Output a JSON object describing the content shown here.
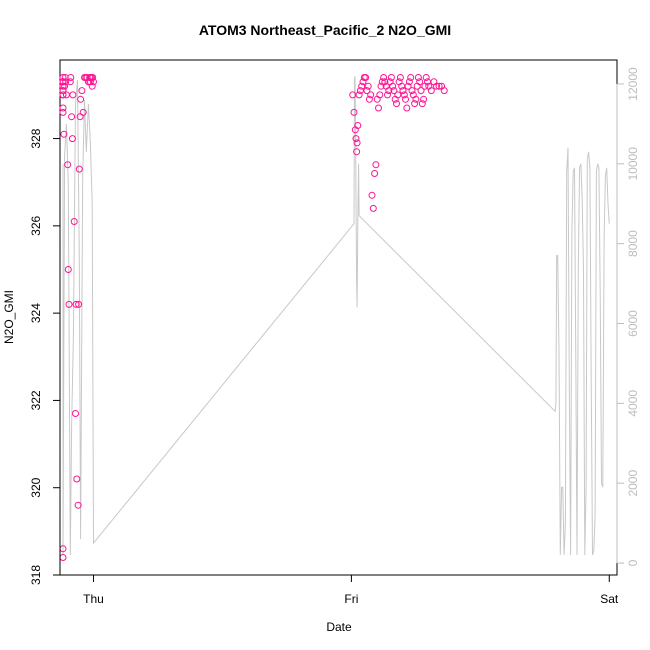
{
  "chart_data": {
    "type": "scatter",
    "title": "ATOM3 Northeast_Pacific_2 N2O_GMI",
    "xlabel": "Date",
    "ylabel": "N2O_GMI",
    "y2label": "",
    "xlim": [
      -0.13,
      2.03
    ],
    "ylim": [
      318,
      329.8
    ],
    "y2lim": [
      -300,
      12600
    ],
    "x_ticks": [
      {
        "value": 0,
        "label": "Thu"
      },
      {
        "value": 1,
        "label": "Fri"
      },
      {
        "value": 2,
        "label": "Sat"
      }
    ],
    "y_ticks": [
      318,
      320,
      322,
      324,
      326,
      328
    ],
    "y2_ticks": [
      0,
      2000,
      4000,
      6000,
      8000,
      10000,
      12000
    ],
    "grid": false,
    "colors": {
      "points": "#ff1493",
      "altitude_line": "#c8c8c8",
      "right_axis": "#bdbdbd",
      "axes": "#000000"
    },
    "series": [
      {
        "axis": "left",
        "style": "points",
        "x": [
          -0.17,
          -0.165,
          -0.16,
          -0.158,
          -0.155,
          -0.152,
          -0.15,
          -0.148,
          -0.145,
          -0.142,
          -0.14,
          -0.138,
          -0.135,
          -0.13,
          -0.125,
          -0.12,
          -0.115,
          -0.112,
          -0.11,
          -0.108,
          -0.105,
          -0.1,
          -0.098,
          -0.095,
          -0.09,
          -0.088,
          -0.085,
          -0.082,
          -0.08,
          -0.075,
          -0.07,
          -0.068,
          -0.065,
          -0.06,
          -0.058,
          -0.055,
          -0.052,
          -0.05,
          -0.045,
          -0.04,
          -0.035,
          -0.03,
          -0.025,
          -0.02,
          -0.018,
          -0.015,
          -0.012,
          -0.01,
          -0.008,
          -0.005,
          -0.003,
          0.0,
          1.005,
          1.01,
          1.015,
          1.018,
          1.02,
          1.022,
          1.025,
          1.03,
          1.035,
          1.04,
          1.045,
          1.05,
          1.055,
          1.06,
          1.065,
          1.07,
          1.075,
          1.08,
          1.085,
          1.09,
          1.095,
          1.1,
          1.105,
          1.11,
          1.115,
          1.12,
          1.125,
          1.13,
          1.135,
          1.14,
          1.145,
          1.15,
          1.155,
          1.16,
          1.165,
          1.17,
          1.175,
          1.18,
          1.185,
          1.19,
          1.195,
          1.2,
          1.205,
          1.21,
          1.215,
          1.22,
          1.225,
          1.23,
          1.235,
          1.24,
          1.245,
          1.25,
          1.255,
          1.26,
          1.265,
          1.27,
          1.275,
          1.28,
          1.285,
          1.29,
          1.295,
          1.3,
          1.31,
          1.32,
          1.33,
          1.34,
          1.35,
          1.36
        ],
        "y": [
          328.6,
          329.2,
          329.4,
          329.3,
          329.1,
          329.0,
          328.7,
          329.3,
          329.1,
          329.2,
          329.3,
          329.0,
          329.3,
          329.3,
          318.6,
          318.4,
          328.1,
          329.2,
          329.4,
          329.3,
          329.0,
          327.4,
          325.0,
          324.2,
          329.3,
          329.4,
          328.5,
          328.0,
          329.0,
          326.1,
          321.7,
          324.2,
          320.2,
          319.6,
          324.2,
          327.3,
          328.5,
          328.9,
          329.1,
          328.6,
          329.4,
          329.4,
          329.4,
          329.3,
          329.3,
          329.4,
          329.3,
          329.4,
          329.4,
          329.2,
          329.4,
          329.3,
          329.0,
          328.6,
          328.2,
          328.0,
          327.7,
          327.9,
          328.3,
          329.0,
          329.1,
          329.2,
          329.3,
          329.4,
          329.4,
          329.1,
          329.2,
          328.9,
          329.0,
          326.7,
          326.4,
          327.2,
          327.4,
          328.9,
          328.7,
          329.0,
          329.2,
          329.3,
          329.4,
          329.3,
          329.2,
          329.0,
          329.1,
          329.3,
          329.4,
          329.2,
          329.1,
          328.9,
          328.8,
          329.0,
          329.3,
          329.4,
          329.2,
          329.1,
          329.0,
          328.9,
          328.7,
          329.2,
          329.3,
          329.4,
          329.1,
          329.0,
          328.8,
          328.9,
          329.2,
          329.4,
          329.3,
          329.1,
          328.8,
          328.9,
          329.2,
          329.4,
          329.3,
          329.2,
          329.1,
          329.3,
          329.2,
          329.2,
          329.2,
          329.1
        ]
      },
      {
        "axis": "right",
        "style": "line",
        "x": [
          -0.172,
          -0.165,
          -0.158,
          -0.152,
          -0.145,
          -0.14,
          -0.135,
          -0.128,
          -0.12,
          -0.112,
          -0.105,
          -0.098,
          -0.09,
          -0.085,
          -0.078,
          -0.07,
          -0.062,
          -0.055,
          -0.05,
          -0.042,
          -0.035,
          -0.028,
          -0.02,
          -0.012,
          -0.005,
          0.0,
          1.01,
          1.012,
          1.014,
          1.016,
          1.018,
          1.02,
          1.022,
          1.025,
          1.028,
          1.03,
          1.79,
          1.793,
          1.796,
          1.8,
          1.805,
          1.81,
          1.815,
          1.82,
          1.825,
          1.83,
          1.835,
          1.84,
          1.845,
          1.85,
          1.855,
          1.86,
          1.865,
          1.87,
          1.875,
          1.88,
          1.885,
          1.89,
          1.895,
          1.9,
          1.905,
          1.91,
          1.915,
          1.92,
          1.925,
          1.93,
          1.935,
          1.94,
          1.945,
          1.95,
          1.955,
          1.96,
          1.965,
          1.97,
          1.975,
          1.98,
          1.985,
          1.99,
          1.995,
          2.0
        ],
        "y": [
          7300,
          1800,
          5500,
          1700,
          400,
          10000,
          9600,
          5200,
          200,
          10200,
          11000,
          9500,
          200,
          3400,
          5700,
          11500,
          12100,
          7600,
          600,
          9700,
          11600,
          10300,
          11500,
          10500,
          9000,
          500,
          8500,
          12100,
          12200,
          11000,
          9200,
          7100,
          6400,
          8500,
          10000,
          8700,
          3800,
          4000,
          7700,
          7700,
          5300,
          200,
          1900,
          1900,
          200,
          1000,
          9800,
          10400,
          4500,
          200,
          8300,
          9800,
          9900,
          5500,
          200,
          7400,
          9900,
          10000,
          9100,
          7300,
          200,
          1900,
          10100,
          10300,
          9900,
          4600,
          200,
          300,
          1200,
          9800,
          10000,
          9900,
          6800,
          2000,
          1900,
          8100,
          9700,
          9900,
          9000,
          8500
        ]
      }
    ]
  }
}
